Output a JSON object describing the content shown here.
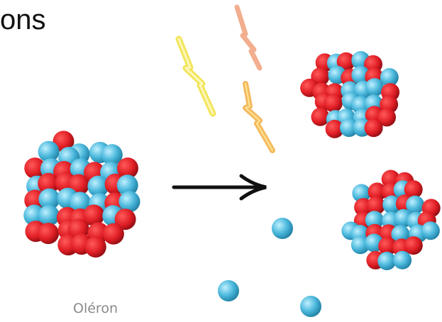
{
  "heading": {
    "text": "ons"
  },
  "caption": {
    "text": "Oléron"
  },
  "colors": {
    "proton": "#e01e25",
    "neutron": "#4bb8dc",
    "arrow": "#111111",
    "bolt_yellow": "#f2e24a",
    "bolt_orange": "#f4b04a",
    "bolt_peach": "#f0a07a",
    "caption": "#8a8a8a"
  },
  "icons": [
    "parent-nucleus",
    "fission-arrow",
    "energy-bolt",
    "daughter-nucleus",
    "free-neutron"
  ]
}
